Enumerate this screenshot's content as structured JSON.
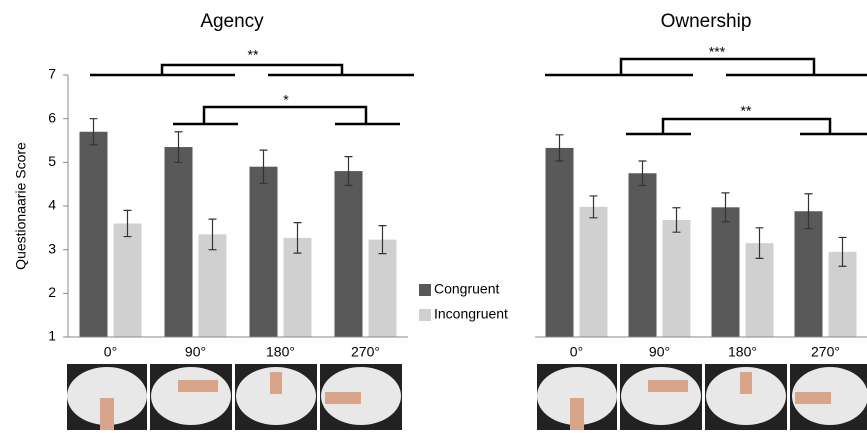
{
  "chart_data": [
    {
      "type": "bar",
      "title": "Agency",
      "y_label": "Questionaarie Score",
      "categories": [
        "0°",
        "90°",
        "180°",
        "270°"
      ],
      "series": [
        {
          "name": "Congruent",
          "color": "#595959",
          "values": [
            5.7,
            5.35,
            4.9,
            4.8
          ],
          "errors": [
            0.3,
            0.35,
            0.38,
            0.33
          ]
        },
        {
          "name": "Incongruent",
          "color": "#d0d0d0",
          "values": [
            3.6,
            3.35,
            3.27,
            3.23
          ],
          "errors": [
            0.3,
            0.35,
            0.35,
            0.32
          ]
        }
      ],
      "ylim": [
        1,
        7
      ],
      "yticks": [
        1,
        2,
        3,
        4,
        5,
        6,
        7
      ],
      "annotations": [
        "**",
        "*"
      ]
    },
    {
      "type": "bar",
      "title": "Ownership",
      "categories": [
        "0°",
        "90°",
        "180°",
        "270°"
      ],
      "series": [
        {
          "color": "#595959",
          "values": [
            5.33,
            4.75,
            3.97,
            3.88
          ],
          "errors": [
            0.3,
            0.28,
            0.33,
            0.4
          ]
        },
        {
          "color": "#d0d0d0",
          "values": [
            3.98,
            3.68,
            3.15,
            2.95
          ],
          "errors": [
            0.25,
            0.28,
            0.35,
            0.33
          ]
        }
      ],
      "ylim": [
        1,
        7
      ],
      "annotations": [
        "***",
        "**"
      ]
    }
  ]
}
